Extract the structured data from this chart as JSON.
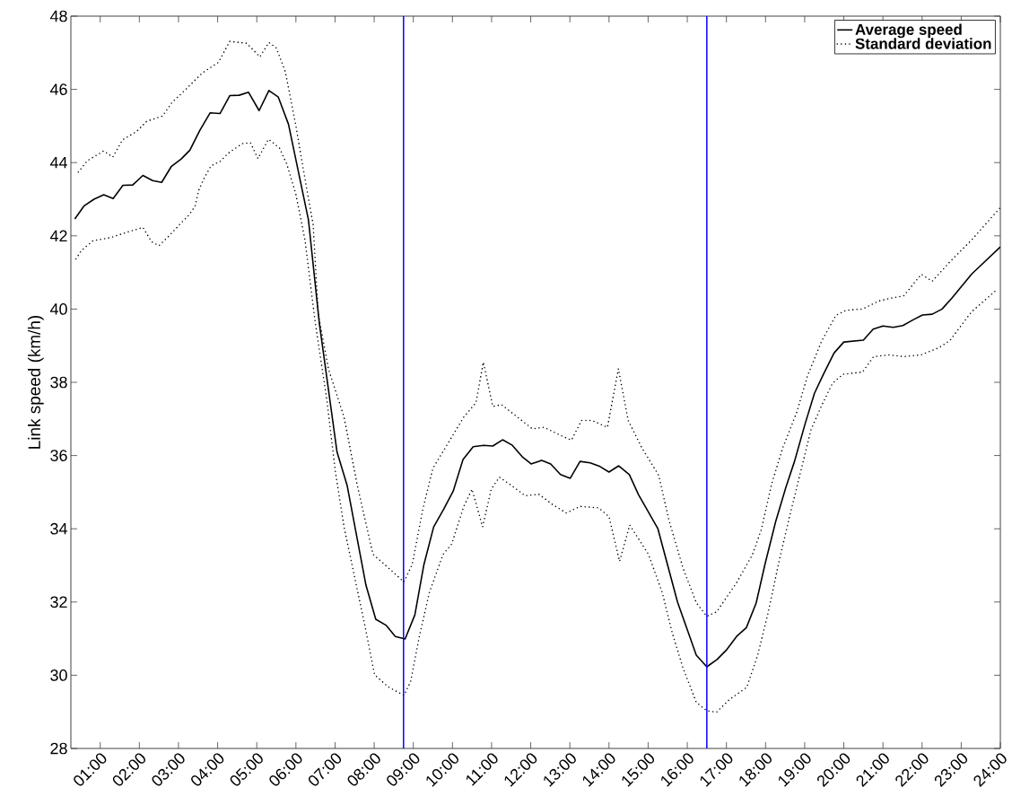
{
  "chart_data": {
    "type": "line",
    "ylabel": "Link speed (km/h)",
    "xlim": [
      0.25,
      24
    ],
    "ylim": [
      28,
      48
    ],
    "xticks": [
      {
        "value": 1,
        "label": "01:00"
      },
      {
        "value": 2,
        "label": "02:00"
      },
      {
        "value": 3,
        "label": "03:00"
      },
      {
        "value": 4,
        "label": "04:00"
      },
      {
        "value": 5,
        "label": "05:00"
      },
      {
        "value": 6,
        "label": "06:00"
      },
      {
        "value": 7,
        "label": "07:00"
      },
      {
        "value": 8,
        "label": "08:00"
      },
      {
        "value": 9,
        "label": "09:00"
      },
      {
        "value": 10,
        "label": "10:00"
      },
      {
        "value": 11,
        "label": "11:00"
      },
      {
        "value": 12,
        "label": "12:00"
      },
      {
        "value": 13,
        "label": "13:00"
      },
      {
        "value": 14,
        "label": "14:00"
      },
      {
        "value": 15,
        "label": "15:00"
      },
      {
        "value": 16,
        "label": "16:00"
      },
      {
        "value": 17,
        "label": "17:00"
      },
      {
        "value": 18,
        "label": "18:00"
      },
      {
        "value": 19,
        "label": "19:00"
      },
      {
        "value": 20,
        "label": "20:00"
      },
      {
        "value": 21,
        "label": "21:00"
      },
      {
        "value": 22,
        "label": "22:00"
      },
      {
        "value": 23,
        "label": "23:00"
      },
      {
        "value": 24,
        "label": "24:00"
      }
    ],
    "yticks": [
      28,
      30,
      32,
      34,
      36,
      38,
      40,
      42,
      44,
      46,
      48
    ],
    "legend": "top right",
    "series": [
      {
        "name": "Average speed",
        "color": "#000000",
        "line_style": "solid",
        "x": [
          0.35,
          0.59,
          0.84,
          1.09,
          1.33,
          1.58,
          1.83,
          2.09,
          2.34,
          2.57,
          2.82,
          3.07,
          3.29,
          3.55,
          3.81,
          4.06,
          4.31,
          4.55,
          4.79,
          5.06,
          5.31,
          5.55,
          5.81,
          6.32,
          6.6,
          7.05,
          7.31,
          7.79,
          8.04,
          8.31,
          8.54,
          8.79,
          9.04,
          9.27,
          9.52,
          9.77,
          10.02,
          10.27,
          10.53,
          10.8,
          11.03,
          11.28,
          11.53,
          11.78,
          12.01,
          12.28,
          12.51,
          12.76,
          13.01,
          13.26,
          13.52,
          13.77,
          14.0,
          14.25,
          14.52,
          14.75,
          15.25,
          15.75,
          16.23,
          16.5,
          16.76,
          17.01,
          17.26,
          17.51,
          17.76,
          17.99,
          18.26,
          18.52,
          18.74,
          19.02,
          19.25,
          19.47,
          19.75,
          20.0,
          20.5,
          20.75,
          21.0,
          21.26,
          21.51,
          21.76,
          22.01,
          22.26,
          22.51,
          22.76,
          23.27,
          24.0
        ],
        "values": [
          42.46,
          42.82,
          43.0,
          43.12,
          43.02,
          43.38,
          43.39,
          43.65,
          43.51,
          43.46,
          43.9,
          44.1,
          44.34,
          44.89,
          45.36,
          45.34,
          45.83,
          45.84,
          45.92,
          45.42,
          45.97,
          45.79,
          45.05,
          42.44,
          39.6,
          36.1,
          35.18,
          32.46,
          31.53,
          31.36,
          31.06,
          30.99,
          31.65,
          33.02,
          34.05,
          34.52,
          35.03,
          35.89,
          36.24,
          36.28,
          36.26,
          36.43,
          36.28,
          35.97,
          35.77,
          35.87,
          35.77,
          35.48,
          35.38,
          35.84,
          35.8,
          35.7,
          35.55,
          35.72,
          35.48,
          34.94,
          34.0,
          32.0,
          30.55,
          30.23,
          30.43,
          30.7,
          31.06,
          31.3,
          31.97,
          33.05,
          34.2,
          35.13,
          35.84,
          36.9,
          37.7,
          38.2,
          38.8,
          39.1,
          39.15,
          39.45,
          39.54,
          39.5,
          39.55,
          39.7,
          39.84,
          39.86,
          40.0,
          40.3,
          40.96,
          41.7
        ]
      },
      {
        "name": "Standard deviation",
        "color": "#000000",
        "line_style": "dotted",
        "x": [
          0.44,
          0.67,
          1.09,
          1.32,
          1.57,
          1.93,
          2.19,
          2.59,
          2.84,
          3.14,
          3.6,
          4.02,
          4.31,
          4.74,
          5.08,
          5.31,
          5.5,
          5.73,
          6.0,
          6.26,
          6.44,
          6.57,
          6.83,
          7.23,
          7.57,
          7.97,
          8.27,
          8.76,
          8.97,
          9.24,
          9.5,
          9.98,
          10.29,
          10.6,
          10.79,
          11.03,
          11.25,
          11.6,
          12.04,
          12.34,
          12.78,
          13.04,
          13.3,
          13.56,
          13.96,
          14.24,
          14.49,
          14.84,
          15.27,
          15.53,
          15.89,
          16.23,
          16.5,
          16.75,
          17.25,
          17.66,
          17.89,
          18.16,
          18.44,
          18.8,
          19.07,
          19.44,
          19.8,
          20.07,
          20.48,
          20.89,
          21.26,
          21.53,
          21.98,
          22.26,
          22.71,
          23.26,
          23.98
        ],
        "values": [
          43.74,
          44.05,
          44.32,
          44.15,
          44.62,
          44.85,
          45.13,
          45.27,
          45.65,
          45.95,
          46.44,
          46.74,
          47.31,
          47.26,
          46.89,
          47.28,
          47.13,
          46.48,
          45.0,
          43.38,
          42.31,
          39.87,
          38.37,
          37.05,
          35.18,
          33.3,
          33.02,
          32.55,
          33.02,
          34.52,
          35.65,
          36.5,
          37.05,
          37.44,
          38.55,
          37.34,
          37.39,
          37.1,
          36.73,
          36.77,
          36.54,
          36.42,
          36.96,
          36.96,
          36.77,
          38.37,
          36.96,
          36.21,
          35.46,
          34.24,
          32.93,
          31.98,
          31.61,
          31.73,
          32.51,
          33.28,
          33.97,
          35.24,
          36.21,
          37.19,
          38.17,
          39.14,
          39.83,
          39.97,
          40.0,
          40.22,
          40.31,
          40.36,
          40.95,
          40.76,
          41.29,
          41.88,
          42.75
        ]
      },
      {
        "color": "#000000",
        "line_style": "dotted",
        "x": [
          0.38,
          0.52,
          0.82,
          1.26,
          1.66,
          2.09,
          2.31,
          2.5,
          2.75,
          3.03,
          3.26,
          3.42,
          3.52,
          3.64,
          3.83,
          4.06,
          4.29,
          4.63,
          4.84,
          5.03,
          5.3,
          5.58,
          5.77,
          6.0,
          6.23,
          6.49,
          6.79,
          7.01,
          7.23,
          7.49,
          7.75,
          8.01,
          8.36,
          8.76,
          8.93,
          9.15,
          9.41,
          9.76,
          9.98,
          10.29,
          10.5,
          10.77,
          10.99,
          11.2,
          11.51,
          11.86,
          12.21,
          12.56,
          12.91,
          13.26,
          13.74,
          14.0,
          14.27,
          14.53,
          15.01,
          15.36,
          15.62,
          15.89,
          16.23,
          16.5,
          16.75,
          17.07,
          17.52,
          17.8,
          18.07,
          18.34,
          18.62,
          18.89,
          19.16,
          19.44,
          19.71,
          19.98,
          20.48,
          20.76,
          21.16,
          21.53,
          21.98,
          22.44,
          22.71,
          23.26,
          23.89
        ],
        "values": [
          41.37,
          41.6,
          41.87,
          41.95,
          42.09,
          42.23,
          41.84,
          41.73,
          41.99,
          42.31,
          42.56,
          42.8,
          43.25,
          43.54,
          43.91,
          44.03,
          44.27,
          44.52,
          44.54,
          44.11,
          44.64,
          44.4,
          43.95,
          43.13,
          41.9,
          39.66,
          37.52,
          35.55,
          34.05,
          32.73,
          31.42,
          30.01,
          29.68,
          29.45,
          29.82,
          31.04,
          32.26,
          33.3,
          33.58,
          34.61,
          35.08,
          34.05,
          35.08,
          35.41,
          35.18,
          34.9,
          34.94,
          34.66,
          34.43,
          34.61,
          34.57,
          34.33,
          33.11,
          34.1,
          33.3,
          32.26,
          31.14,
          30.2,
          29.26,
          29.03,
          28.99,
          29.33,
          29.67,
          30.55,
          31.72,
          33.09,
          34.36,
          35.53,
          36.7,
          37.38,
          37.97,
          38.22,
          38.28,
          38.7,
          38.75,
          38.7,
          38.75,
          38.95,
          39.14,
          39.92,
          40.51
        ]
      }
    ],
    "ref_lines": [
      {
        "axis": "x",
        "value": 8.75,
        "color": "#0000ff"
      },
      {
        "axis": "x",
        "value": 16.5,
        "color": "#0000ff"
      }
    ]
  }
}
